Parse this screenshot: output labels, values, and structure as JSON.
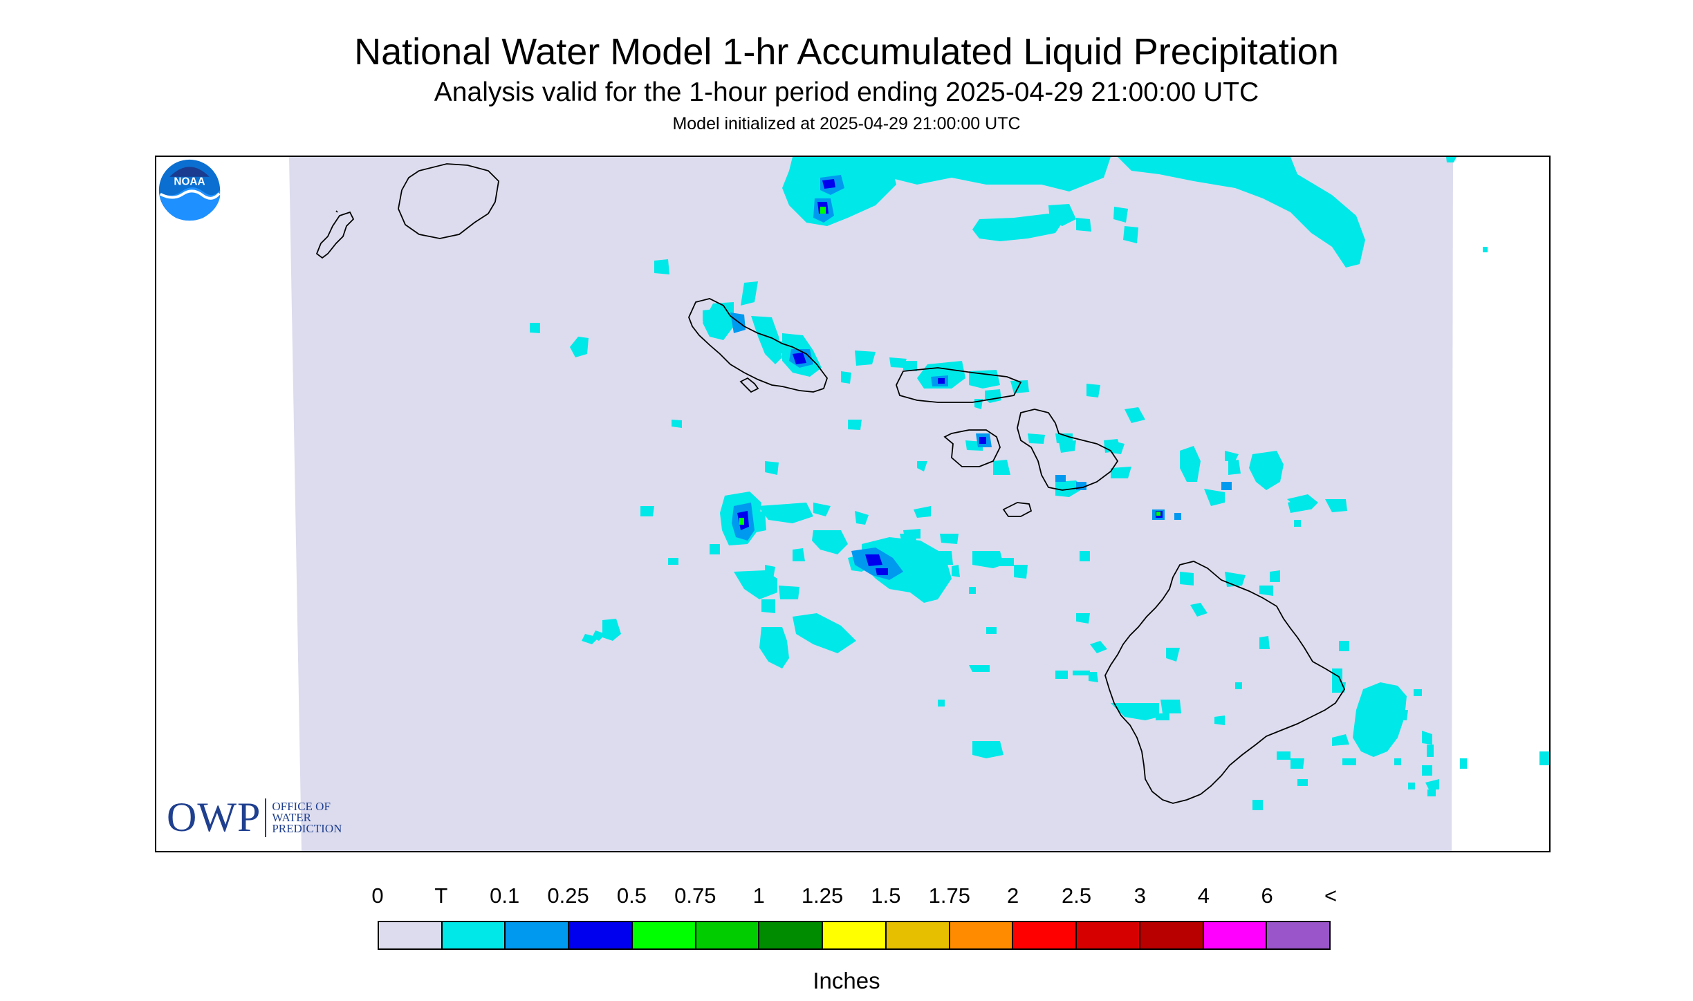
{
  "header": {
    "title": "National Water Model 1-hr Accumulated Liquid Precipitation",
    "subtitle": "Analysis valid for the 1-hour period ending 2025-04-29 21:00:00 UTC",
    "init": "Model initialized at 2025-04-29 21:00:00 UTC"
  },
  "logos": {
    "owp_main": "OWP",
    "owp_line1": "OFFICE OF",
    "owp_line2": "WATER",
    "owp_line3": "PREDICTION",
    "noaa": "NOAA"
  },
  "legend": {
    "labels": [
      "0",
      "T",
      "0.1",
      "0.25",
      "0.5",
      "0.75",
      "1",
      "1.25",
      "1.5",
      "1.75",
      "2",
      "2.5",
      "3",
      "4",
      "6",
      "<"
    ],
    "colors": [
      "#dcdcee",
      "#00e8e8",
      "#0099f0",
      "#0000ee",
      "#00ff00",
      "#00cc00",
      "#008c00",
      "#ffff00",
      "#e6bf00",
      "#ff8c00",
      "#ff0000",
      "#d60000",
      "#b80000",
      "#ff00ff",
      "#9955c9"
    ],
    "unit": "Inches"
  },
  "map": {
    "background_color": "#dcdcee",
    "coast_color": "#000000"
  }
}
